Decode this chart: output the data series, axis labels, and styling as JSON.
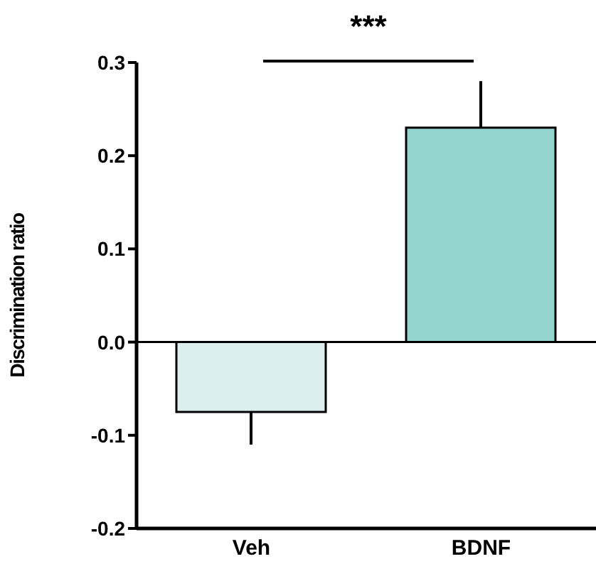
{
  "chart_data": {
    "type": "bar",
    "ylabel": "Discrimination ratio",
    "categories": [
      "Veh",
      "BDNF"
    ],
    "values": [
      -0.075,
      0.23
    ],
    "colors": [
      "#dcefee",
      "#93d4cf"
    ],
    "errors": [
      [
        -0.11,
        -0.075
      ],
      [
        0.23,
        0.28
      ]
    ],
    "ylim": [
      -0.2,
      0.3
    ],
    "yticks": [
      {
        "value": -0.2,
        "label": "-0.2"
      },
      {
        "value": -0.1,
        "label": "-0.1"
      },
      {
        "value": 0,
        "label": "0.0"
      },
      {
        "value": 0.1,
        "label": "0.1"
      },
      {
        "value": 0.2,
        "label": "0.2"
      },
      {
        "value": 0.3,
        "label": "0.3"
      }
    ],
    "ref_lines": [
      {
        "axis": "y",
        "value": 0,
        "label": null,
        "color": "#000000"
      }
    ],
    "annotations": [
      "***"
    ],
    "grid": false,
    "legend": false
  }
}
